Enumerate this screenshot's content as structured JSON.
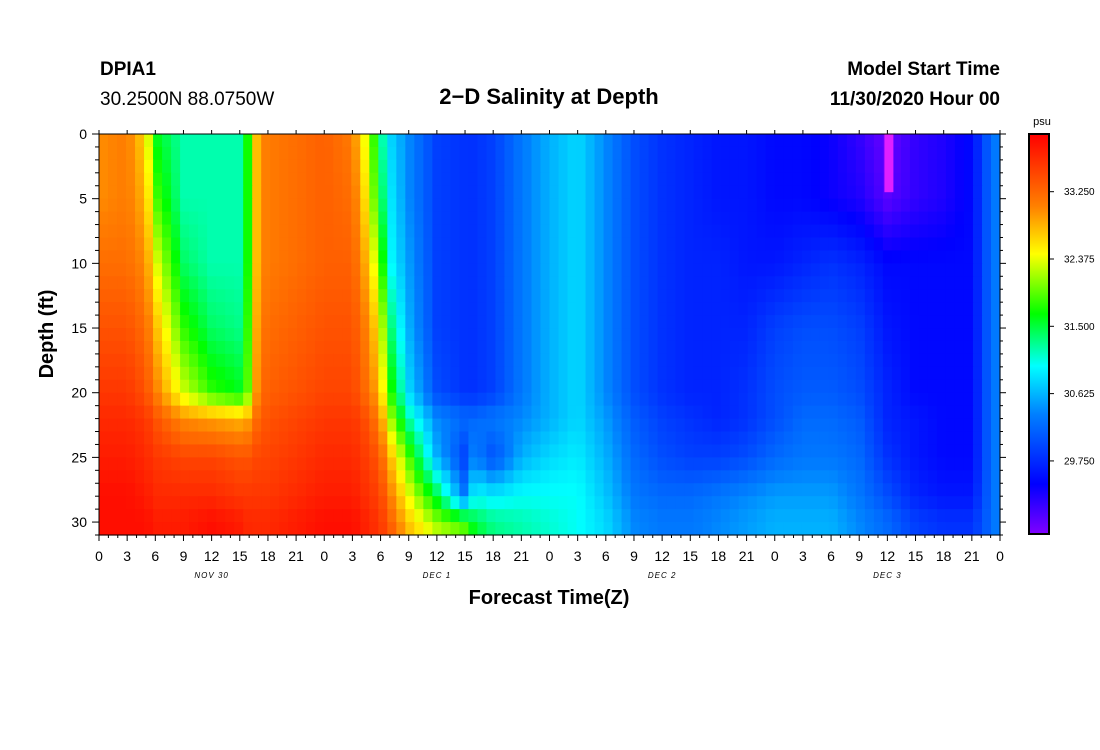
{
  "header": {
    "station": "DPIA1",
    "location": "30.2500N 88.0750W",
    "title": "2−D Salinity at Depth",
    "start_label": "Model Start Time",
    "start_value": "11/30/2020 Hour 00"
  },
  "chart_data": {
    "type": "heatmap",
    "title": "2−D Salinity at Depth",
    "xlabel": "Forecast Time(Z)",
    "ylabel": "Depth (ft)",
    "x_tick_labels": [
      "0",
      "3",
      "6",
      "9",
      "12",
      "15",
      "18",
      "21",
      "0",
      "3",
      "6",
      "9",
      "12",
      "15",
      "18",
      "21",
      "0",
      "3",
      "6",
      "9",
      "12",
      "15",
      "18",
      "21",
      "0",
      "3",
      "6",
      "9",
      "12",
      "15",
      "18",
      "21",
      "0"
    ],
    "x_range_hours": [
      0,
      96
    ],
    "day_labels": [
      {
        "text": "NOV 30",
        "hour": 12
      },
      {
        "text": "DEC 1",
        "hour": 36
      },
      {
        "text": "DEC 2",
        "hour": 60
      },
      {
        "text": "DEC 3",
        "hour": 84
      }
    ],
    "y_ticks": [
      0,
      5,
      10,
      15,
      20,
      25,
      30
    ],
    "ylim": [
      0,
      31
    ],
    "y_inverted": true,
    "colorbar": {
      "unit": "psu",
      "tick_values": [
        33.25,
        32.375,
        31.5,
        30.625,
        29.75
      ],
      "tick_labels": [
        "33.250",
        "32.375",
        "31.500",
        "30.625",
        "29.750"
      ],
      "vmin": 28.8,
      "vmax": 34.0
    },
    "depths": [
      0,
      5,
      10,
      15,
      20,
      22,
      25,
      28,
      30,
      31
    ],
    "hours": [
      0,
      3,
      5,
      6,
      9,
      12,
      15,
      16,
      17,
      18,
      21,
      24,
      27,
      28,
      29,
      30,
      31,
      33,
      36,
      39,
      40,
      42,
      45,
      48,
      51,
      54,
      57,
      60,
      63,
      66,
      69,
      72,
      75,
      78,
      81,
      84,
      87,
      90,
      93,
      95,
      96
    ],
    "values": [
      [
        33.0,
        33.1,
        32.6,
        31.6,
        31.2,
        31.2,
        31.2,
        31.8,
        33.0,
        33.1,
        33.2,
        33.3,
        33.1,
        32.6,
        32.0,
        31.3,
        30.8,
        30.4,
        29.9,
        29.8,
        29.8,
        29.9,
        30.3,
        30.6,
        30.8,
        30.4,
        30.0,
        29.8,
        29.7,
        29.6,
        29.6,
        29.5,
        29.5,
        29.4,
        29.2,
        28.9,
        29.2,
        29.3,
        29.5,
        30.2,
        30.4
      ],
      [
        33.0,
        33.1,
        32.8,
        31.9,
        31.2,
        31.2,
        31.2,
        31.8,
        33.0,
        33.1,
        33.2,
        33.3,
        33.2,
        32.8,
        32.2,
        31.5,
        30.9,
        30.4,
        29.9,
        29.8,
        29.8,
        29.9,
        30.3,
        30.6,
        30.8,
        30.4,
        30.0,
        29.8,
        29.7,
        29.6,
        29.6,
        29.5,
        29.5,
        29.4,
        29.3,
        29.0,
        29.2,
        29.3,
        29.5,
        30.2,
        30.4
      ],
      [
        33.2,
        33.2,
        33.0,
        32.4,
        31.4,
        31.2,
        31.2,
        31.8,
        33.0,
        33.1,
        33.2,
        33.3,
        33.3,
        33.0,
        32.6,
        31.9,
        31.0,
        30.5,
        29.9,
        29.8,
        29.8,
        29.9,
        30.3,
        30.6,
        30.8,
        30.4,
        30.0,
        29.8,
        29.7,
        29.7,
        29.6,
        29.6,
        29.7,
        29.8,
        29.7,
        29.5,
        29.5,
        29.5,
        29.5,
        30.2,
        30.4
      ],
      [
        33.4,
        33.4,
        33.2,
        32.8,
        31.8,
        31.4,
        31.3,
        31.9,
        33.1,
        33.2,
        33.3,
        33.4,
        33.4,
        33.2,
        32.9,
        32.4,
        31.4,
        30.6,
        29.9,
        29.8,
        29.8,
        29.9,
        30.3,
        30.6,
        30.8,
        30.4,
        30.0,
        29.8,
        29.7,
        29.7,
        29.7,
        29.9,
        30.0,
        30.0,
        29.9,
        29.6,
        29.5,
        29.5,
        29.5,
        30.2,
        30.4
      ],
      [
        33.6,
        33.6,
        33.4,
        33.1,
        32.3,
        31.8,
        31.6,
        32.0,
        33.2,
        33.3,
        33.4,
        33.5,
        33.5,
        33.3,
        33.1,
        32.7,
        31.8,
        30.8,
        30.0,
        29.8,
        29.8,
        29.9,
        30.3,
        30.6,
        30.8,
        30.4,
        30.0,
        29.8,
        29.7,
        29.7,
        29.8,
        30.0,
        30.1,
        30.1,
        30.0,
        29.7,
        29.5,
        29.5,
        29.5,
        30.2,
        30.4
      ],
      [
        33.7,
        33.7,
        33.6,
        33.4,
        33.0,
        32.9,
        32.8,
        32.9,
        33.3,
        33.4,
        33.5,
        33.6,
        33.6,
        33.5,
        33.3,
        33.0,
        32.2,
        31.2,
        30.4,
        30.2,
        30.2,
        30.3,
        30.4,
        30.6,
        30.8,
        30.5,
        30.1,
        29.9,
        29.8,
        29.7,
        29.8,
        30.0,
        30.2,
        30.2,
        30.1,
        29.7,
        29.6,
        29.5,
        29.5,
        30.2,
        30.4
      ],
      [
        33.8,
        33.8,
        33.7,
        33.6,
        33.5,
        33.5,
        33.4,
        33.4,
        33.5,
        33.5,
        33.6,
        33.7,
        33.7,
        33.6,
        33.5,
        33.3,
        32.8,
        31.9,
        30.6,
        29.9,
        30.4,
        30.0,
        30.6,
        30.8,
        30.9,
        30.6,
        30.2,
        30.0,
        29.9,
        29.9,
        30.0,
        30.2,
        30.3,
        30.3,
        30.2,
        29.8,
        29.6,
        29.5,
        29.5,
        30.2,
        30.4
      ],
      [
        33.9,
        33.9,
        33.8,
        33.7,
        33.7,
        33.7,
        33.6,
        33.6,
        33.6,
        33.6,
        33.7,
        33.8,
        33.8,
        33.7,
        33.6,
        33.5,
        33.1,
        32.4,
        31.5,
        30.3,
        31.0,
        30.9,
        31.0,
        31.0,
        31.0,
        30.7,
        30.3,
        30.2,
        30.2,
        30.3,
        30.4,
        30.5,
        30.5,
        30.5,
        30.3,
        30.0,
        29.7,
        29.6,
        29.6,
        30.2,
        30.4
      ],
      [
        33.9,
        33.9,
        33.9,
        33.8,
        33.8,
        33.9,
        33.8,
        33.7,
        33.7,
        33.7,
        33.8,
        33.9,
        33.9,
        33.8,
        33.7,
        33.6,
        33.3,
        32.7,
        32.1,
        31.8,
        31.5,
        31.3,
        31.2,
        31.1,
        31.0,
        30.8,
        30.4,
        30.3,
        30.3,
        30.4,
        30.5,
        30.6,
        30.6,
        30.6,
        30.4,
        30.2,
        29.9,
        29.8,
        29.8,
        30.2,
        30.4
      ],
      [
        33.9,
        33.9,
        33.9,
        33.8,
        33.8,
        33.9,
        33.8,
        33.7,
        33.7,
        33.7,
        33.8,
        33.9,
        33.9,
        33.8,
        33.7,
        33.6,
        33.4,
        32.8,
        32.3,
        32.0,
        31.6,
        31.3,
        31.2,
        31.1,
        31.0,
        30.8,
        30.4,
        30.3,
        30.3,
        30.4,
        30.5,
        30.6,
        30.6,
        30.6,
        30.4,
        30.2,
        29.9,
        29.8,
        29.8,
        30.2,
        30.4
      ]
    ],
    "max_marker": {
      "hour": 84,
      "depth_range": [
        0,
        4.5
      ],
      "value": 28.6
    }
  }
}
